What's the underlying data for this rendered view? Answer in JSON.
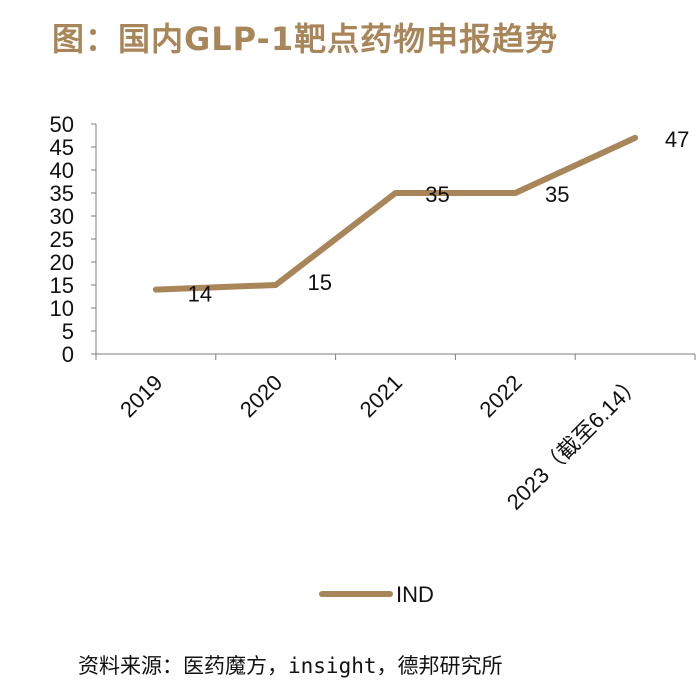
{
  "title": "图：国内GLP-1靶点药物申报趋势",
  "source": "资料来源：医药魔方，insight，德邦研究所",
  "colors": {
    "title": "#a8865a",
    "line": "#a8865a",
    "axis": "#7f7f7f"
  },
  "chart_data": {
    "type": "line",
    "categories": [
      "2019",
      "2020",
      "2021",
      "2022",
      "2023（截至6.14）"
    ],
    "series": [
      {
        "name": "IND",
        "values": [
          14,
          15,
          35,
          35,
          47
        ]
      }
    ],
    "data_labels": [
      "14",
      "15",
      "35",
      "35",
      "47"
    ],
    "y_ticks": [
      "0",
      "5",
      "10",
      "15",
      "20",
      "25",
      "30",
      "35",
      "40",
      "45",
      "50"
    ],
    "ylim": [
      0,
      50
    ],
    "grid": false,
    "legend": "bottom"
  }
}
